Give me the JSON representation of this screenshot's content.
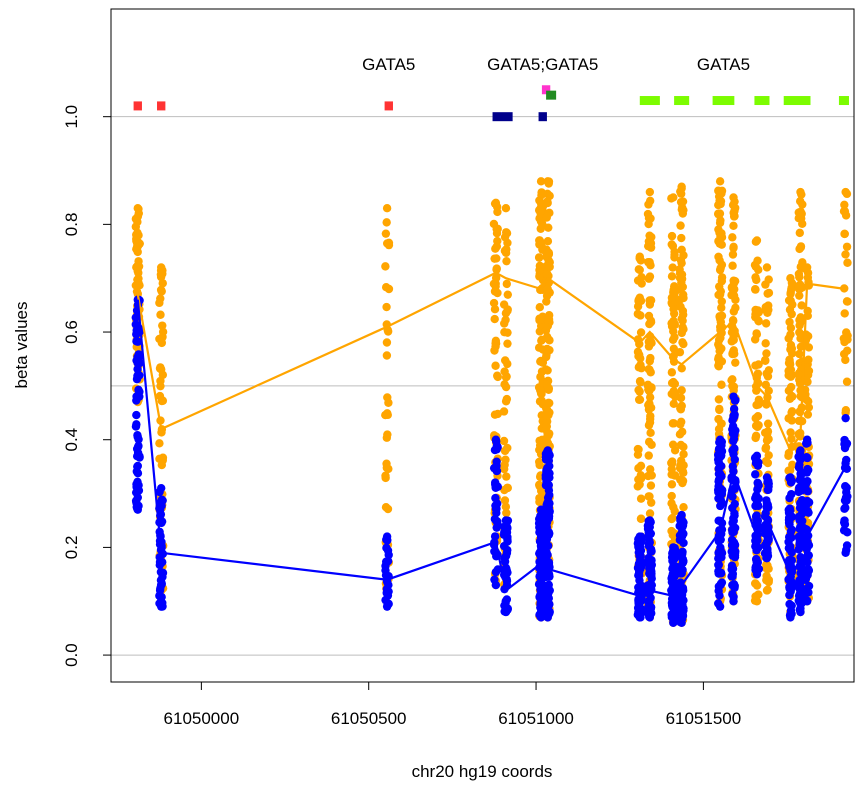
{
  "chart_data": {
    "type": "scatter",
    "xlabel": "chr20 hg19 coords",
    "ylabel": "beta values",
    "xlim": [
      61049730,
      61051950
    ],
    "ylim": [
      -0.05,
      1.2
    ],
    "xticks": [
      {
        "value": 61050000,
        "label": "61050000"
      },
      {
        "value": 61050500,
        "label": "61050500"
      },
      {
        "value": 61051000,
        "label": "61051000"
      },
      {
        "value": 61051500,
        "label": "61051500"
      }
    ],
    "yticks": [
      {
        "value": 0.0,
        "label": "0.0"
      },
      {
        "value": 0.2,
        "label": "0.2"
      },
      {
        "value": 0.4,
        "label": "0.4"
      },
      {
        "value": 0.6,
        "label": "0.6"
      },
      {
        "value": 0.8,
        "label": "0.8"
      },
      {
        "value": 1.0,
        "label": "1.0"
      }
    ],
    "hlines": [
      0,
      0.5,
      1.0
    ],
    "hline_color": "#bebebe",
    "gene_labels": [
      {
        "x": 61050560,
        "text": "GATA5"
      },
      {
        "x": 61051020,
        "text": "GATA5;GATA5"
      },
      {
        "x": 61051560,
        "text": "GATA5"
      }
    ],
    "feature_marks": [
      {
        "x": 61049810,
        "width": 25,
        "y": 1.02,
        "color": "#ff3333"
      },
      {
        "x": 61049880,
        "width": 25,
        "y": 1.02,
        "color": "#ff3333"
      },
      {
        "x": 61050560,
        "width": 25,
        "y": 1.02,
        "color": "#ff3333"
      },
      {
        "x": 61051030,
        "width": 25,
        "y": 1.05,
        "color": "#ff33cc"
      },
      {
        "x": 61051045,
        "width": 30,
        "y": 1.04,
        "color": "#228b22"
      },
      {
        "x": 61050900,
        "width": 60,
        "y": 1.0,
        "color": "#00008b"
      },
      {
        "x": 61051020,
        "width": 25,
        "y": 1.0,
        "color": "#00008b"
      },
      {
        "x": 61051340,
        "width": 60,
        "y": 1.03,
        "color": "#7cfc00"
      },
      {
        "x": 61051435,
        "width": 45,
        "y": 1.03,
        "color": "#7cfc00"
      },
      {
        "x": 61051560,
        "width": 65,
        "y": 1.03,
        "color": "#7cfc00"
      },
      {
        "x": 61051675,
        "width": 45,
        "y": 1.03,
        "color": "#7cfc00"
      },
      {
        "x": 61051780,
        "width": 80,
        "y": 1.03,
        "color": "#7cfc00"
      },
      {
        "x": 61051920,
        "width": 30,
        "y": 1.03,
        "color": "#7cfc00"
      }
    ],
    "series": [
      {
        "color": "#ffa500",
        "columns": [
          {
            "x": 61049810,
            "min": 0.47,
            "max": 0.83,
            "n": 70
          },
          {
            "x": 61049880,
            "min": 0.12,
            "max": 0.72,
            "n": 55
          },
          {
            "x": 61050555,
            "min": 0.12,
            "max": 0.83,
            "n": 35
          },
          {
            "x": 61050880,
            "min": 0.13,
            "max": 0.84,
            "n": 55
          },
          {
            "x": 61050910,
            "min": 0.13,
            "max": 0.83,
            "n": 50
          },
          {
            "x": 61051015,
            "min": 0.07,
            "max": 0.88,
            "n": 120
          },
          {
            "x": 61051035,
            "min": 0.07,
            "max": 0.88,
            "n": 120
          },
          {
            "x": 61051310,
            "min": 0.08,
            "max": 0.74,
            "n": 60
          },
          {
            "x": 61051340,
            "min": 0.07,
            "max": 0.86,
            "n": 80
          },
          {
            "x": 61051410,
            "min": 0.06,
            "max": 0.85,
            "n": 80
          },
          {
            "x": 61051435,
            "min": 0.06,
            "max": 0.87,
            "n": 80
          },
          {
            "x": 61051550,
            "min": 0.1,
            "max": 0.88,
            "n": 100
          },
          {
            "x": 61051590,
            "min": 0.1,
            "max": 0.85,
            "n": 90
          },
          {
            "x": 61051660,
            "min": 0.1,
            "max": 0.77,
            "n": 60
          },
          {
            "x": 61051690,
            "min": 0.12,
            "max": 0.72,
            "n": 60
          },
          {
            "x": 61051760,
            "min": 0.08,
            "max": 0.7,
            "n": 70
          },
          {
            "x": 61051790,
            "min": 0.08,
            "max": 0.86,
            "n": 100
          },
          {
            "x": 61051810,
            "min": 0.1,
            "max": 0.72,
            "n": 60
          },
          {
            "x": 61051925,
            "min": 0.45,
            "max": 0.86,
            "n": 25
          }
        ],
        "line": {
          "x": [
            61049810,
            61049880,
            61050555,
            61050880,
            61050910,
            61051015,
            61051035,
            61051310,
            61051340,
            61051410,
            61051435,
            61051550,
            61051590,
            61051660,
            61051690,
            61051760,
            61051790,
            61051810,
            61051925
          ],
          "y": [
            0.67,
            0.42,
            0.61,
            0.71,
            0.7,
            0.68,
            0.7,
            0.58,
            0.6,
            0.55,
            0.54,
            0.6,
            0.62,
            0.5,
            0.48,
            0.38,
            0.41,
            0.69,
            0.68
          ]
        }
      },
      {
        "color": "#0000ff",
        "columns": [
          {
            "x": 61049810,
            "min": 0.27,
            "max": 0.66,
            "n": 60
          },
          {
            "x": 61049880,
            "min": 0.09,
            "max": 0.31,
            "n": 45
          },
          {
            "x": 61050555,
            "min": 0.09,
            "max": 0.22,
            "n": 25
          },
          {
            "x": 61050880,
            "min": 0.13,
            "max": 0.4,
            "n": 40
          },
          {
            "x": 61050910,
            "min": 0.08,
            "max": 0.25,
            "n": 40
          },
          {
            "x": 61051015,
            "min": 0.07,
            "max": 0.27,
            "n": 90
          },
          {
            "x": 61051035,
            "min": 0.07,
            "max": 0.38,
            "n": 90
          },
          {
            "x": 61051310,
            "min": 0.07,
            "max": 0.22,
            "n": 70
          },
          {
            "x": 61051340,
            "min": 0.07,
            "max": 0.25,
            "n": 70
          },
          {
            "x": 61051410,
            "min": 0.06,
            "max": 0.2,
            "n": 60
          },
          {
            "x": 61051435,
            "min": 0.06,
            "max": 0.26,
            "n": 60
          },
          {
            "x": 61051550,
            "min": 0.09,
            "max": 0.4,
            "n": 70
          },
          {
            "x": 61051590,
            "min": 0.1,
            "max": 0.48,
            "n": 70
          },
          {
            "x": 61051660,
            "min": 0.15,
            "max": 0.37,
            "n": 50
          },
          {
            "x": 61051690,
            "min": 0.18,
            "max": 0.33,
            "n": 40
          },
          {
            "x": 61051760,
            "min": 0.07,
            "max": 0.33,
            "n": 60
          },
          {
            "x": 61051790,
            "min": 0.08,
            "max": 0.38,
            "n": 70
          },
          {
            "x": 61051810,
            "min": 0.1,
            "max": 0.4,
            "n": 50
          },
          {
            "x": 61051925,
            "min": 0.19,
            "max": 0.44,
            "n": 25
          }
        ],
        "line": {
          "x": [
            61049810,
            61049880,
            61050555,
            61050880,
            61050910,
            61051015,
            61051035,
            61051310,
            61051340,
            61051410,
            61051435,
            61051550,
            61051590,
            61051660,
            61051690,
            61051760,
            61051790,
            61051810,
            61051925
          ],
          "y": [
            0.66,
            0.19,
            0.14,
            0.21,
            0.12,
            0.17,
            0.16,
            0.11,
            0.12,
            0.11,
            0.13,
            0.23,
            0.34,
            0.22,
            0.25,
            0.15,
            0.12,
            0.22,
            0.35
          ]
        }
      }
    ]
  }
}
